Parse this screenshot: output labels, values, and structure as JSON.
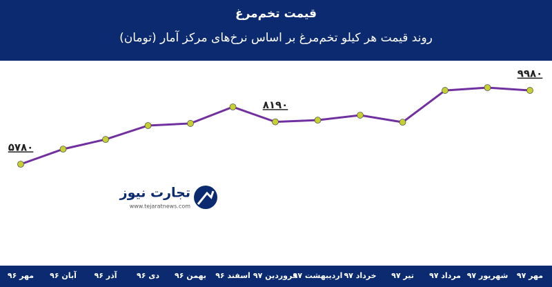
{
  "chart_data": {
    "type": "line",
    "title": "قیمت تخم‌مرغ",
    "subtitle": "روند قیمت هر کیلو تخم‌مرغ بر اساس نرخ‌های مرکز آمار (تومان)",
    "categories": [
      "مهر ۹۶",
      "آبان ۹۶",
      "آذر ۹۶",
      "دی ۹۶",
      "بهمن ۹۶",
      "اسفند ۹۶",
      "فروردین ۹۷",
      "اردیبهشت ۹۷",
      "خرداد ۹۷",
      "تیر ۹۷",
      "مرداد ۹۷",
      "شهریور ۹۷",
      "مهر ۹۷"
    ],
    "series": [
      {
        "color": "#7030a0",
        "values": [
          5780,
          6640,
          7190,
          7980,
          8100,
          9040,
          8190,
          8290,
          8570,
          8170,
          9980,
          10140,
          9980
        ],
        "value_labels": [
          "۵۷۸۰",
          null,
          null,
          null,
          null,
          null,
          "۸۱۹۰",
          null,
          null,
          null,
          null,
          null,
          "۹۹۸۰"
        ]
      }
    ],
    "marker_color": "#c6d131",
    "logo": {
      "name": "تجارت نیوز",
      "url": "www.tejaratnews.com"
    }
  }
}
